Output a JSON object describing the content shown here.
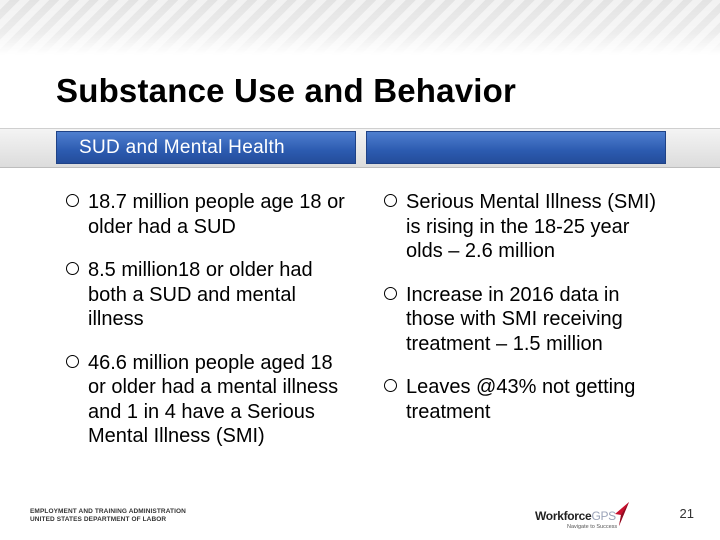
{
  "slide": {
    "title": "Substance Use and Behavior",
    "left_header": "SUD and Mental Health",
    "right_header": "",
    "left_bullets": [
      "18.7 million people age 18 or older had a SUD",
      "8.5 million18 or older had both a SUD and mental illness",
      "46.6 million people aged 18 or older had a mental illness and 1 in 4 have a Serious Mental Illness (SMI)"
    ],
    "right_bullets": [
      "Serious Mental Illness (SMI) is rising in the 18-25 year olds – 2.6 million",
      "Increase in 2016 data in those with SMI receiving treatment – 1.5 million",
      "Leaves @43% not getting treatment"
    ],
    "page_number": "21"
  },
  "footer": {
    "agency_line1": "EMPLOYMENT AND TRAINING ADMINISTRATION",
    "agency_line2": "UNITED STATES DEPARTMENT OF LABOR",
    "logo_main": "Workforce",
    "logo_accent": "GPS",
    "logo_tagline": "Navigate to Success"
  },
  "colors": {
    "header_blue": "#2c5bb0",
    "logo_red": "#c8102e"
  }
}
